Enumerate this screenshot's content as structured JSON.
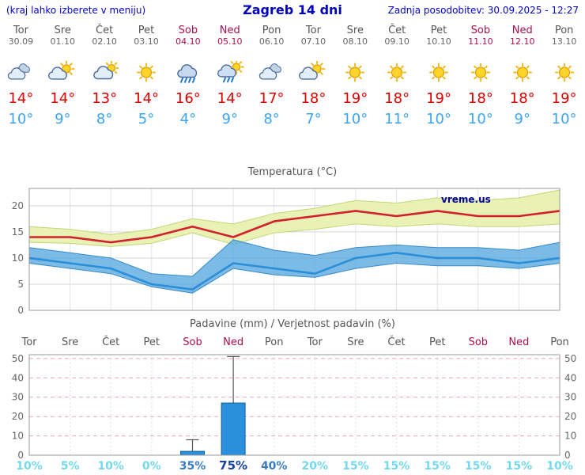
{
  "header": {
    "left_note": "(kraj lahko izberete v meniju)",
    "title": "Zagreb 14 dni",
    "updated": "Zadnja posodobitev: 30.09.2025 - 12:27"
  },
  "days": [
    {
      "name": "Tor",
      "date": "30.09",
      "weekend": false,
      "icon": "cloudy",
      "tmax": "14°",
      "tmin": "10°",
      "prob": "10%",
      "prob_level": "low"
    },
    {
      "name": "Sre",
      "date": "01.10",
      "weekend": false,
      "icon": "partly-cloudy",
      "tmax": "14°",
      "tmin": "9°",
      "prob": "5%",
      "prob_level": "low"
    },
    {
      "name": "Čet",
      "date": "02.10",
      "weekend": false,
      "icon": "mostly-cloudy",
      "tmax": "13°",
      "tmin": "8°",
      "prob": "10%",
      "prob_level": "low"
    },
    {
      "name": "Pet",
      "date": "03.10",
      "weekend": false,
      "icon": "sunny",
      "tmax": "14°",
      "tmin": "5°",
      "prob": "0%",
      "prob_level": "low"
    },
    {
      "name": "Sob",
      "date": "04.10",
      "weekend": true,
      "icon": "rain",
      "tmax": "16°",
      "tmin": "4°",
      "prob": "35%",
      "prob_level": "mid"
    },
    {
      "name": "Ned",
      "date": "05.10",
      "weekend": true,
      "icon": "sun-rain",
      "tmax": "14°",
      "tmin": "9°",
      "prob": "75%",
      "prob_level": "high"
    },
    {
      "name": "Pon",
      "date": "06.10",
      "weekend": false,
      "icon": "cloudy",
      "tmax": "17°",
      "tmin": "8°",
      "prob": "40%",
      "prob_level": "mid"
    },
    {
      "name": "Tor",
      "date": "07.10",
      "weekend": false,
      "icon": "partly-cloudy",
      "tmax": "18°",
      "tmin": "7°",
      "prob": "20%",
      "prob_level": "low"
    },
    {
      "name": "Sre",
      "date": "08.10",
      "weekend": false,
      "icon": "sunny",
      "tmax": "19°",
      "tmin": "10°",
      "prob": "15%",
      "prob_level": "low"
    },
    {
      "name": "Čet",
      "date": "09.10",
      "weekend": false,
      "icon": "sunny",
      "tmax": "18°",
      "tmin": "11°",
      "prob": "15%",
      "prob_level": "low"
    },
    {
      "name": "Pet",
      "date": "10.10",
      "weekend": false,
      "icon": "sunny",
      "tmax": "19°",
      "tmin": "10°",
      "prob": "15%",
      "prob_level": "low"
    },
    {
      "name": "Sob",
      "date": "11.10",
      "weekend": true,
      "icon": "sunny",
      "tmax": "18°",
      "tmin": "10°",
      "prob": "15%",
      "prob_level": "low"
    },
    {
      "name": "Ned",
      "date": "12.10",
      "weekend": true,
      "icon": "sunny",
      "tmax": "18°",
      "tmin": "9°",
      "prob": "15%",
      "prob_level": "low"
    },
    {
      "name": "Pon",
      "date": "13.10",
      "weekend": false,
      "icon": "sunny",
      "tmax": "19°",
      "tmin": "10°",
      "prob": "10%",
      "prob_level": "low"
    }
  ],
  "chart_data": [
    {
      "type": "line",
      "title": "Temperatura (°C)",
      "watermark": "vreme.us",
      "watermark_color": "#000099",
      "x_labels": [
        "Tor 30.09",
        "Sre 01.10",
        "Čet 02.10",
        "Pet 03.10",
        "Sob 04.10",
        "Ned 05.10",
        "Pon 06.10",
        "Tor 07.10",
        "Sre 08.10",
        "Čet 09.10",
        "Pet 10.10",
        "Sob 11.10",
        "Ned 12.10",
        "Pon 13.10"
      ],
      "yticks": [
        0,
        5,
        10,
        15,
        20
      ],
      "ylim": [
        0,
        23.3
      ],
      "grid": true,
      "legend": "none",
      "series": [
        {
          "name": "max-temp",
          "color": "#d3202f",
          "values": [
            14,
            14,
            13,
            14,
            16,
            14,
            17,
            18,
            19,
            18,
            19,
            18,
            18,
            19
          ]
        },
        {
          "name": "min-temp",
          "color": "#2b8fd8",
          "values": [
            10,
            9,
            8,
            5,
            4,
            9,
            8,
            7,
            10,
            11,
            10,
            10,
            9,
            10
          ]
        }
      ],
      "bands": [
        {
          "name": "max-range",
          "fill": "#e9f1b4",
          "edge": "#c3d677",
          "upper": [
            16,
            15.5,
            14.5,
            15.5,
            17.5,
            16.5,
            18.5,
            19.5,
            21,
            20.5,
            21.5,
            21,
            21.5,
            23
          ],
          "lower": [
            13,
            12.8,
            12.2,
            12.8,
            14.8,
            12.6,
            14.8,
            15.5,
            16.5,
            16,
            16.5,
            16,
            16,
            16.5
          ]
        },
        {
          "name": "min-range",
          "fill": "rgba(88,168,224,0.78)",
          "edge": "rgba(40,130,195,0.9)",
          "upper": [
            12,
            11,
            10,
            7,
            6.5,
            13.5,
            11.5,
            10.5,
            12,
            12.5,
            12,
            12,
            11.5,
            13
          ],
          "lower": [
            9,
            8,
            7,
            4.5,
            3.3,
            8,
            6.8,
            6.3,
            8,
            9,
            8.5,
            8.5,
            8,
            9
          ]
        }
      ]
    },
    {
      "type": "bar",
      "title": "Padavine (mm) / Verjetnost padavin (%)",
      "categories": [
        "Tor",
        "Sre",
        "Čet",
        "Pet",
        "Sob",
        "Ned",
        "Pon",
        "Tor",
        "Sre",
        "Čet",
        "Pet",
        "Sob",
        "Ned",
        "Pon"
      ],
      "values": [
        0,
        0,
        0,
        0,
        2,
        27,
        0,
        0,
        0,
        0,
        0,
        0,
        0,
        0
      ],
      "whisker_max": [
        0,
        0,
        0,
        0,
        8,
        51,
        0,
        0,
        0,
        0,
        0,
        0,
        0,
        0
      ],
      "probabilities_pct": [
        10,
        5,
        10,
        0,
        35,
        75,
        40,
        20,
        15,
        15,
        15,
        15,
        15,
        10
      ],
      "yticks": [
        0,
        10,
        20,
        30,
        40,
        50
      ],
      "ylim": [
        0,
        52
      ],
      "grid": true,
      "bar_color": "#2a8fdd",
      "bar_edge": "#115d9d",
      "prob_colors": {
        "low": "#74d8ec",
        "mid": "#3a7cc0",
        "high": "#17419e"
      }
    }
  ]
}
